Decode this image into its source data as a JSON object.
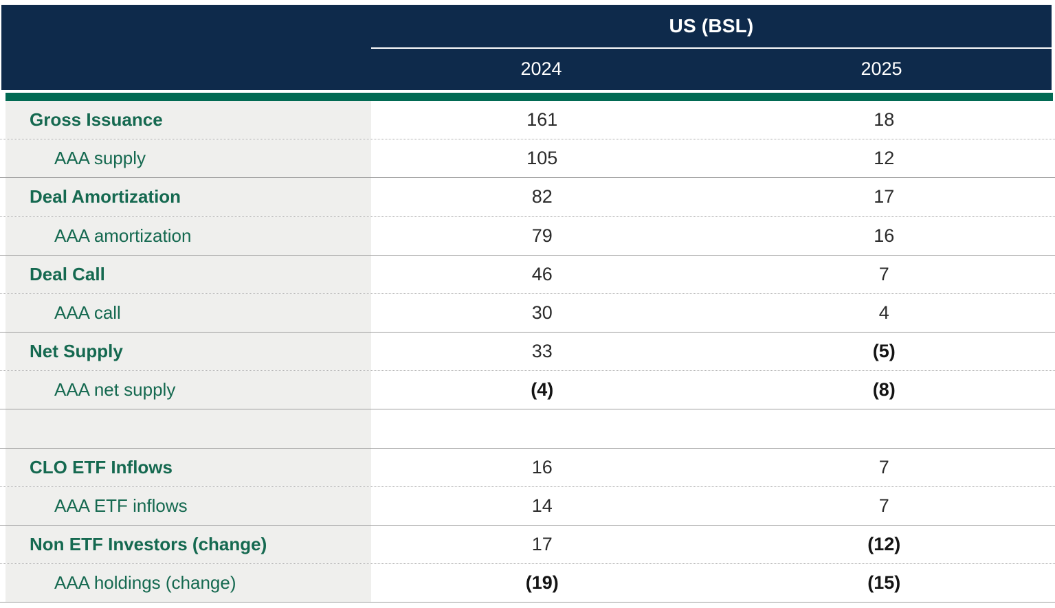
{
  "colors": {
    "navy": "#0e2a4b",
    "green_bar": "#026a53",
    "green_text": "#156950",
    "label_bg": "#efefed",
    "value_text": "#2b2b2b",
    "divider_solid": "#9c9c9c",
    "divider_dotted": "#a9a9a9",
    "header_text": "#ffffff"
  },
  "table": {
    "header": {
      "group_label": "US (BSL)",
      "columns": [
        "2024",
        "2025"
      ]
    },
    "rows": [
      {
        "label": "Gross Issuance",
        "label_bold": true,
        "indent": false,
        "empty": false,
        "divider": "dotted",
        "values": [
          {
            "text": "161",
            "bold": false
          },
          {
            "text": "18",
            "bold": false
          }
        ]
      },
      {
        "label": "AAA supply",
        "label_bold": false,
        "indent": true,
        "empty": false,
        "divider": "solid",
        "values": [
          {
            "text": "105",
            "bold": false
          },
          {
            "text": "12",
            "bold": false
          }
        ]
      },
      {
        "label": "Deal Amortization",
        "label_bold": true,
        "indent": false,
        "empty": false,
        "divider": "dotted",
        "values": [
          {
            "text": "82",
            "bold": false
          },
          {
            "text": "17",
            "bold": false
          }
        ]
      },
      {
        "label": "AAA amortization",
        "label_bold": false,
        "indent": true,
        "empty": false,
        "divider": "solid",
        "values": [
          {
            "text": "79",
            "bold": false
          },
          {
            "text": "16",
            "bold": false
          }
        ]
      },
      {
        "label": "Deal Call",
        "label_bold": true,
        "indent": false,
        "empty": false,
        "divider": "dotted",
        "values": [
          {
            "text": "46",
            "bold": false
          },
          {
            "text": "7",
            "bold": false
          }
        ]
      },
      {
        "label": "AAA call",
        "label_bold": false,
        "indent": true,
        "empty": false,
        "divider": "solid",
        "values": [
          {
            "text": "30",
            "bold": false
          },
          {
            "text": "4",
            "bold": false
          }
        ]
      },
      {
        "label": "Net Supply",
        "label_bold": true,
        "indent": false,
        "empty": false,
        "divider": "dotted",
        "values": [
          {
            "text": "33",
            "bold": false
          },
          {
            "text": "(5)",
            "bold": true
          }
        ]
      },
      {
        "label": "AAA net supply",
        "label_bold": false,
        "indent": true,
        "empty": false,
        "divider": "solid",
        "values": [
          {
            "text": "(4)",
            "bold": true
          },
          {
            "text": "(8)",
            "bold": true
          }
        ]
      },
      {
        "label": "",
        "label_bold": false,
        "indent": false,
        "empty": true,
        "divider": "solid",
        "values": [
          {
            "text": "",
            "bold": false
          },
          {
            "text": "",
            "bold": false
          }
        ]
      },
      {
        "label": "CLO ETF Inflows",
        "label_bold": true,
        "indent": false,
        "empty": false,
        "divider": "dotted",
        "values": [
          {
            "text": "16",
            "bold": false
          },
          {
            "text": "7",
            "bold": false
          }
        ]
      },
      {
        "label": "AAA ETF inflows",
        "label_bold": false,
        "indent": true,
        "empty": false,
        "divider": "solid",
        "values": [
          {
            "text": "14",
            "bold": false
          },
          {
            "text": "7",
            "bold": false
          }
        ]
      },
      {
        "label": "Non ETF Investors (change)",
        "label_bold": true,
        "indent": false,
        "empty": false,
        "divider": "dotted",
        "values": [
          {
            "text": "17",
            "bold": false
          },
          {
            "text": "(12)",
            "bold": true
          }
        ]
      },
      {
        "label": "AAA holdings (change)",
        "label_bold": false,
        "indent": true,
        "empty": false,
        "divider": "solid",
        "values": [
          {
            "text": "(19)",
            "bold": true
          },
          {
            "text": "(15)",
            "bold": true
          }
        ]
      }
    ]
  }
}
